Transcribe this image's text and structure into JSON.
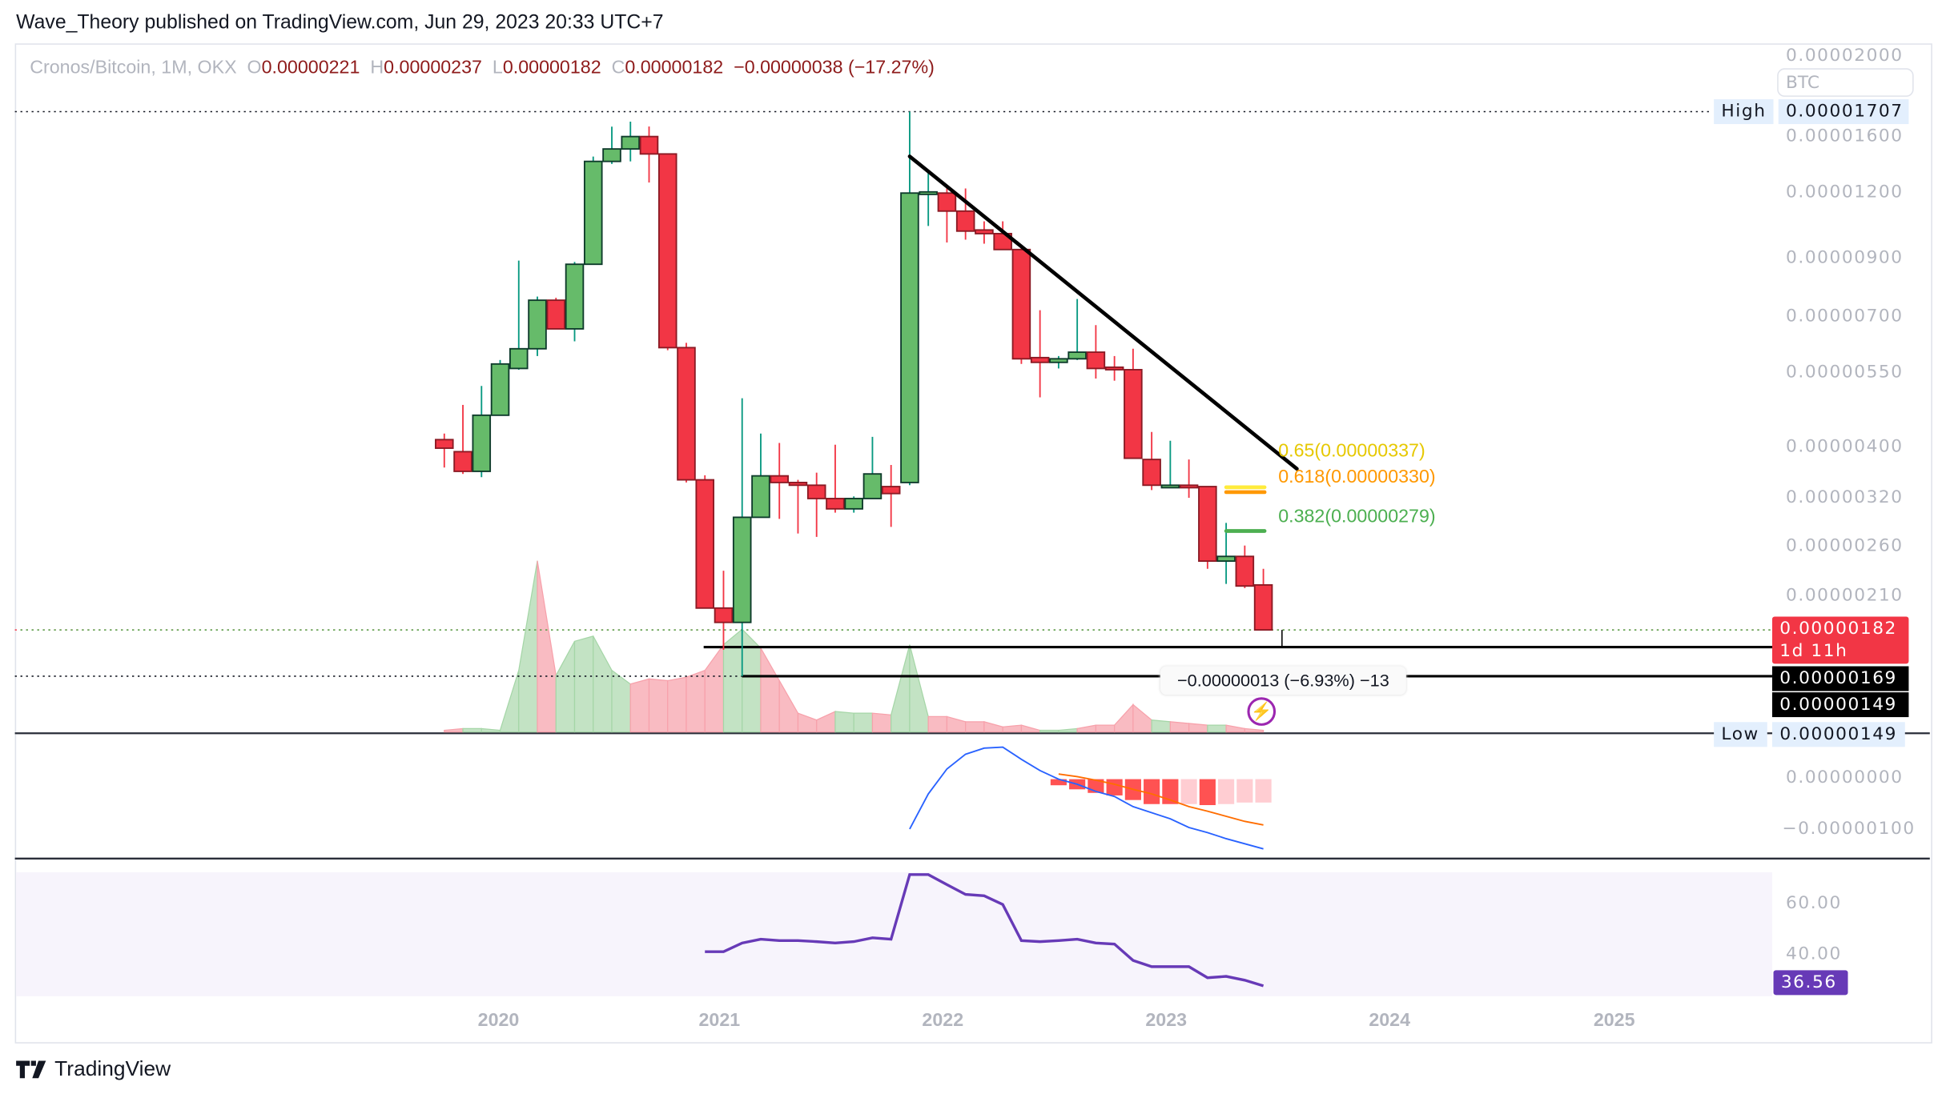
{
  "header": {
    "published": "Wave_Theory published on TradingView.com, Jun 29, 2023 20:33 UTC+7"
  },
  "legend": {
    "symbol": "Cronos/Bitcoin, 1M, OKX",
    "o_label": "O",
    "o": "0.00000221",
    "h_label": "H",
    "h": "0.00000237",
    "l_label": "L",
    "l": "0.00000182",
    "c_label": "C",
    "c": "0.00000182",
    "change": "−0.00000038 (−17.27%)"
  },
  "price_axis": {
    "currency": "BTC",
    "ticks": [
      "0.00002000",
      "0.00001600",
      "0.00001200",
      "0.00000900",
      "0.00000700",
      "0.00000550",
      "0.00000400",
      "0.00000320",
      "0.00000260",
      "0.00000210"
    ],
    "tick_values_sats": [
      2000,
      1600,
      1200,
      900,
      700,
      550,
      400,
      320,
      260,
      210
    ],
    "high_label": "High",
    "high_value": "0.00001707",
    "low_label": "Low",
    "low_value": "0.00000149",
    "current_price": "0.00000182",
    "countdown": "1d 11h",
    "level_1": "0.00000169",
    "level_2": "0.00000149"
  },
  "time_axis": [
    "2020",
    "2021",
    "2022",
    "2023",
    "2024",
    "2025"
  ],
  "drawings": {
    "fib_065": "0.65(0.00000337)",
    "fib_0618": "0.618(0.00000330)",
    "fib_0382": "0.382(0.00000279)",
    "measure": "−0.00000013 (−6.93%) −13"
  },
  "macd_axis": [
    "0.00000000",
    "−0.00000100"
  ],
  "rsi_axis": {
    "ticks": [
      "60.00",
      "40.00"
    ],
    "current": "36.56"
  },
  "colors": {
    "up": "#66BB6A",
    "down": "#F23645",
    "up_wick": "#089981",
    "down_wick": "#F23645",
    "macd": "#2962FF",
    "signal": "#FF6D00",
    "rsi": "#673AB7",
    "fib_065": "#FFEB3B",
    "fib_0618": "#FF9800",
    "fib_0382": "#4CAF50"
  },
  "footer": {
    "brand": "TradingView"
  },
  "chart_data": {
    "type": "candlestick",
    "title": "Cronos/Bitcoin, 1M, OKX",
    "price_unit": "1e-8 BTC",
    "scale": "log",
    "ohlc": [
      [
        414,
        399,
        425,
        367
      ],
      [
        393,
        361,
        481,
        357
      ],
      [
        361,
        460,
        522,
        352
      ],
      [
        460,
        574,
        584,
        459
      ],
      [
        563,
        613,
        897,
        560
      ],
      [
        613,
        756,
        768,
        594
      ],
      [
        756,
        668,
        764,
        668
      ],
      [
        668,
        883,
        892,
        633
      ],
      [
        883,
        1377,
        1406,
        883
      ],
      [
        1377,
        1453,
        1600,
        1362
      ],
      [
        1453,
        1533,
        1635,
        1377
      ],
      [
        1533,
        1422,
        1601,
        1257
      ],
      [
        1422,
        616,
        1422,
        609
      ],
      [
        616,
        348,
        629,
        344
      ],
      [
        348,
        200,
        355,
        200
      ],
      [
        200,
        188,
        235,
        167
      ],
      [
        188,
        296,
        495,
        149
      ],
      [
        296,
        354,
        425,
        342
      ],
      [
        354,
        344,
        408,
        294
      ],
      [
        344,
        340,
        348,
        276
      ],
      [
        340,
        321,
        359,
        272
      ],
      [
        321,
        307,
        405,
        302
      ],
      [
        307,
        321,
        324,
        302
      ],
      [
        321,
        357,
        419,
        321
      ],
      [
        338,
        328,
        371,
        284
      ],
      [
        344,
        1201,
        1707,
        340
      ],
      [
        1201,
        1207,
        1316,
        1042
      ],
      [
        1201,
        1111,
        1237,
        970
      ],
      [
        1111,
        1019,
        1225,
        982
      ],
      [
        1024,
        1008,
        1063,
        965
      ],
      [
        1008,
        941,
        1063,
        941
      ],
      [
        941,
        587,
        956,
        574
      ],
      [
        590,
        578,
        724,
        497
      ],
      [
        578,
        587,
        594,
        563
      ],
      [
        587,
        604,
        760,
        584
      ],
      [
        604,
        563,
        679,
        539
      ],
      [
        566,
        563,
        594,
        534
      ],
      [
        560,
        382,
        613,
        382
      ],
      [
        380,
        340,
        428,
        333
      ],
      [
        340,
        340,
        412,
        340
      ],
      [
        340,
        338,
        380,
        322
      ],
      [
        338,
        245,
        338,
        237
      ],
      [
        245,
        250,
        289,
        222
      ],
      [
        250,
        220,
        262,
        218
      ],
      [
        221,
        182,
        237,
        182
      ]
    ],
    "volume_relative": [
      1,
      2,
      2,
      1,
      36,
      100,
      33,
      53,
      56,
      36,
      28,
      31,
      30,
      32,
      36,
      51,
      60,
      49,
      30,
      11,
      7,
      12,
      11,
      11,
      10,
      51,
      9,
      9,
      6,
      6,
      3,
      4,
      1,
      1,
      2,
      4,
      4,
      16,
      7,
      6,
      5,
      4,
      4,
      2,
      1
    ],
    "macd": {
      "unit": "1e-8 BTC",
      "start_index": 25,
      "macd": [
        -98,
        -29,
        20,
        49,
        61,
        63,
        39,
        17,
        0,
        -10,
        -24,
        -34,
        -54,
        -66,
        -78,
        -95,
        -105,
        -117,
        -127,
        -137
      ],
      "signal_start_index": 33,
      "signal": [
        10,
        5,
        -2,
        -10,
        -20,
        -29,
        -41,
        -54,
        -63,
        -73,
        -83,
        -90
      ],
      "histogram": [
        -12,
        -20,
        -27,
        -32,
        -41,
        -49,
        -49,
        -49,
        -51,
        -49,
        -46,
        -46
      ],
      "histogram_falling": [
        true,
        true,
        true,
        true,
        true,
        true,
        true,
        false,
        true,
        false,
        false,
        false
      ]
    },
    "rsi": {
      "start_index": 14,
      "values": [
        46.4,
        46.4,
        48.9,
        50,
        49.6,
        49.6,
        49.3,
        48.9,
        49.3,
        50.4,
        50,
        68.6,
        68.6,
        65.7,
        62.9,
        62.5,
        60,
        49.6,
        49.3,
        49.6,
        50,
        48.9,
        48.6,
        43.9,
        42.1,
        42.1,
        42.1,
        38.9,
        39.3,
        38.2,
        36.56
      ]
    },
    "trendline": {
      "from": {
        "index": 25,
        "price": 1407
      },
      "to": {
        "index": 45.8,
        "price": 365
      }
    },
    "fib_levels": [
      {
        "ratio": 0.65,
        "price": 337
      },
      {
        "ratio": 0.618,
        "price": 330
      },
      {
        "ratio": 0.382,
        "price": 279
      }
    ],
    "horizontal_levels": [
      169,
      149
    ]
  }
}
